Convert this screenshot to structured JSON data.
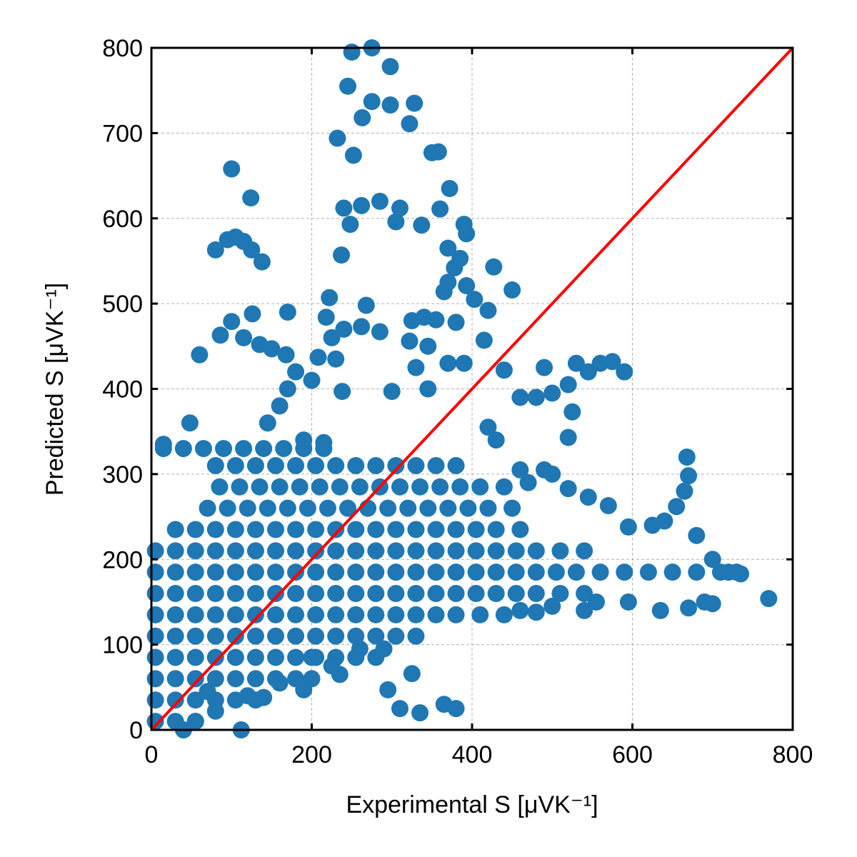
{
  "chart_data": {
    "type": "scatter",
    "xlabel": "Experimental S [μVK⁻¹]",
    "ylabel": "Predicted S [μVK⁻¹]",
    "xlim": [
      0,
      800
    ],
    "ylim": [
      0,
      800
    ],
    "xticks": [
      0,
      200,
      400,
      600,
      800
    ],
    "yticks": [
      0,
      100,
      200,
      300,
      400,
      500,
      600,
      700,
      800
    ],
    "grid": true,
    "reference_line": {
      "x": [
        0,
        800
      ],
      "y": [
        0,
        800
      ],
      "color": "#ff0000"
    },
    "x": [
      15,
      40,
      65,
      90,
      115,
      140,
      165,
      190,
      215,
      80,
      105,
      130,
      155,
      180,
      205,
      230,
      255,
      280,
      305,
      330,
      355,
      380,
      85,
      110,
      135,
      160,
      185,
      210,
      235,
      260,
      285,
      310,
      335,
      360,
      385,
      410,
      440,
      70,
      95,
      120,
      145,
      170,
      195,
      220,
      245,
      270,
      295,
      320,
      345,
      370,
      395,
      420,
      450,
      30,
      55,
      80,
      105,
      130,
      155,
      180,
      205,
      230,
      255,
      280,
      305,
      330,
      355,
      380,
      405,
      430,
      460,
      5,
      30,
      55,
      80,
      105,
      130,
      155,
      180,
      205,
      230,
      255,
      280,
      305,
      330,
      355,
      380,
      405,
      430,
      455,
      480,
      510,
      540,
      5,
      30,
      55,
      80,
      105,
      130,
      155,
      180,
      205,
      230,
      255,
      280,
      305,
      330,
      355,
      380,
      405,
      430,
      455,
      480,
      505,
      530,
      560,
      590,
      620,
      650,
      680,
      710,
      730,
      5,
      30,
      55,
      80,
      105,
      130,
      155,
      180,
      205,
      230,
      255,
      280,
      305,
      330,
      355,
      380,
      405,
      430,
      455,
      480,
      510,
      540,
      5,
      30,
      55,
      80,
      105,
      130,
      155,
      180,
      205,
      230,
      255,
      280,
      305,
      330,
      355,
      380,
      410,
      440,
      5,
      30,
      55,
      80,
      105,
      130,
      155,
      180,
      205,
      230,
      255,
      280,
      305,
      330,
      5,
      30,
      55,
      80,
      105,
      130,
      155,
      180,
      205,
      230,
      255,
      280,
      5,
      30,
      55,
      80,
      105,
      130,
      155,
      180,
      200,
      5,
      30,
      55,
      80,
      105,
      130,
      5,
      30,
      55,
      250,
      275,
      298,
      245,
      275,
      298,
      328,
      322,
      263,
      232,
      252,
      350,
      358,
      100,
      124,
      372,
      240,
      262,
      285,
      310,
      248,
      305,
      337,
      360,
      390,
      393,
      80,
      95,
      105,
      115,
      125,
      138,
      237,
      370,
      385,
      378,
      370,
      365,
      393,
      403,
      427,
      450,
      100,
      86,
      126,
      170,
      218,
      222,
      240,
      262,
      268,
      285,
      325,
      340,
      355,
      380,
      420,
      415,
      60,
      115,
      135,
      150,
      168,
      180,
      200,
      208,
      225,
      230,
      170,
      160,
      145,
      238,
      322,
      345,
      370,
      390,
      330,
      300,
      440,
      490,
      460,
      480,
      500,
      520,
      530,
      545,
      560,
      575,
      590,
      525,
      520,
      345,
      48,
      15,
      190,
      215,
      420,
      430,
      460,
      470,
      490,
      500,
      520,
      545,
      570,
      595,
      625,
      640,
      655,
      665,
      670,
      668,
      680,
      700,
      720,
      735,
      770,
      700,
      690,
      670,
      635,
      595,
      555,
      500,
      480,
      460,
      540,
      260,
      290,
      225,
      235,
      190,
      295,
      310,
      335,
      365,
      380,
      325,
      112,
      140,
      80,
      40,
      160,
      200,
      120,
      55,
      70
    ],
    "series": [
      {
        "color": "#1f77b4",
        "values": [
          330,
          330,
          330,
          330,
          330,
          330,
          330,
          330,
          330,
          310,
          310,
          310,
          310,
          310,
          310,
          310,
          310,
          310,
          310,
          310,
          310,
          310,
          285,
          285,
          285,
          285,
          285,
          285,
          285,
          285,
          285,
          285,
          285,
          285,
          285,
          285,
          285,
          260,
          260,
          260,
          260,
          260,
          260,
          260,
          260,
          260,
          260,
          260,
          260,
          260,
          260,
          260,
          260,
          235,
          235,
          235,
          235,
          235,
          235,
          235,
          235,
          235,
          235,
          235,
          235,
          235,
          235,
          235,
          235,
          235,
          235,
          210,
          210,
          210,
          210,
          210,
          210,
          210,
          210,
          210,
          210,
          210,
          210,
          210,
          210,
          210,
          210,
          210,
          210,
          210,
          210,
          210,
          210,
          185,
          185,
          185,
          185,
          185,
          185,
          185,
          185,
          185,
          185,
          185,
          185,
          185,
          185,
          185,
          185,
          185,
          185,
          185,
          185,
          185,
          185,
          185,
          185,
          185,
          185,
          185,
          185,
          185,
          160,
          160,
          160,
          160,
          160,
          160,
          160,
          160,
          160,
          160,
          160,
          160,
          160,
          160,
          160,
          160,
          160,
          160,
          160,
          160,
          160,
          160,
          135,
          135,
          135,
          135,
          135,
          135,
          135,
          135,
          135,
          135,
          135,
          135,
          135,
          135,
          135,
          135,
          135,
          135,
          110,
          110,
          110,
          110,
          110,
          110,
          110,
          110,
          110,
          110,
          110,
          110,
          110,
          110,
          85,
          85,
          85,
          85,
          85,
          85,
          85,
          85,
          85,
          85,
          85,
          85,
          60,
          60,
          60,
          60,
          60,
          60,
          60,
          60,
          60,
          35,
          35,
          35,
          35,
          35,
          35,
          10,
          10,
          10,
          795,
          800,
          778,
          755,
          737,
          733,
          735,
          711,
          718,
          694,
          674,
          677,
          678,
          658,
          624,
          635,
          612,
          615,
          620,
          612,
          593,
          596,
          592,
          611,
          593,
          582,
          563,
          575,
          578,
          573,
          563,
          549,
          557,
          565,
          553,
          542,
          525,
          514,
          521,
          505,
          543,
          516,
          479,
          463,
          488,
          490,
          484,
          507,
          470,
          473,
          498,
          467,
          480,
          484,
          481,
          478,
          492,
          457,
          440,
          460,
          452,
          447,
          440,
          420,
          410,
          437,
          460,
          435,
          400,
          380,
          360,
          397,
          456,
          450,
          430,
          430,
          425,
          397,
          422,
          425,
          390,
          390,
          395,
          405,
          430,
          420,
          430,
          432,
          420,
          373,
          343,
          400,
          360,
          335,
          340,
          337,
          355,
          340,
          305,
          290,
          305,
          300,
          283,
          273,
          263,
          238,
          240,
          245,
          262,
          280,
          298,
          320,
          228,
          200,
          185,
          183,
          154,
          148,
          150,
          143,
          140,
          150,
          150,
          145,
          138,
          140,
          140,
          95,
          95,
          75,
          65,
          47,
          47,
          25,
          20,
          30,
          25,
          66,
          0,
          38,
          22,
          0,
          55,
          85,
          40,
          10,
          45
        ]
      }
    ]
  }
}
